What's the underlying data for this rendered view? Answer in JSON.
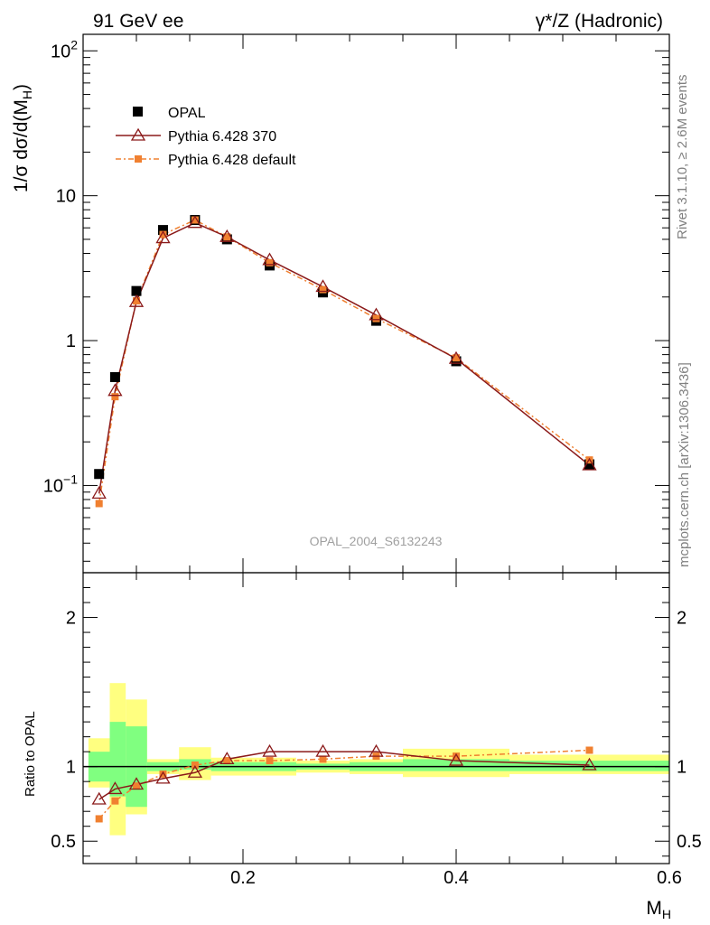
{
  "header": {
    "left_title": "91 GeV ee",
    "right_title_sym": "γ*/Z",
    "right_title_rest": "(Hadronic)"
  },
  "side_labels": {
    "rivet": "Rivet 3.1.10, ≥ 2.6M events",
    "mcplots": "mcplots.cern.ch [arXiv:1306.3436]"
  },
  "watermark": "OPAL_2004_S6132243",
  "chart_data": {
    "type": "line",
    "scale_y": "log",
    "ylabel_parts": [
      "1/σ dσ/d(M",
      "H",
      ")"
    ],
    "ylim": [
      0.025,
      130
    ],
    "y_ticks": [
      {
        "value": 100,
        "base": "10",
        "exp": "2"
      },
      {
        "value": 10,
        "label": "10"
      },
      {
        "value": 1,
        "label": "1"
      },
      {
        "value": 0.1,
        "base": "10",
        "exp": "−1"
      }
    ],
    "x": [
      0.065,
      0.08,
      0.1,
      0.125,
      0.155,
      0.185,
      0.225,
      0.275,
      0.325,
      0.4,
      0.525
    ],
    "series": [
      {
        "name": "OPAL",
        "values": [
          0.12,
          0.56,
          2.2,
          5.8,
          6.8,
          5.0,
          3.3,
          2.15,
          1.37,
          0.72,
          0.14
        ],
        "color": "#000000",
        "marker": "square"
      },
      {
        "name": "Pythia 6.428 370",
        "values": [
          0.088,
          0.45,
          1.85,
          5.1,
          6.5,
          5.2,
          3.6,
          2.35,
          1.5,
          0.75,
          0.138
        ],
        "color": "#8b1a1a",
        "marker": "triangle"
      },
      {
        "name": "Pythia 6.428 default",
        "values": [
          0.075,
          0.41,
          1.88,
          5.4,
          6.8,
          5.2,
          3.45,
          2.25,
          1.42,
          0.76,
          0.15
        ],
        "color": "#f08030",
        "marker": "dash-square"
      }
    ],
    "ratio": {
      "ylabel": "Ratio to OPAL",
      "ylim": [
        0.35,
        2.3
      ],
      "y_ticks": [
        {
          "value": 2,
          "label": "2"
        },
        {
          "value": 1,
          "label": "1"
        },
        {
          "value": 0.5,
          "label": "0.5"
        }
      ],
      "bin_edges": [
        0.055,
        0.075,
        0.09,
        0.11,
        0.14,
        0.17,
        0.2,
        0.25,
        0.3,
        0.35,
        0.45,
        0.6
      ],
      "band_green": [
        [
          0.9,
          1.1
        ],
        [
          0.8,
          1.3
        ],
        [
          0.73,
          1.27
        ],
        [
          0.97,
          1.03
        ],
        [
          0.98,
          1.05
        ],
        [
          0.97,
          1.03
        ],
        [
          0.97,
          1.03
        ],
        [
          0.98,
          1.02
        ],
        [
          0.97,
          1.03
        ],
        [
          0.97,
          1.05
        ],
        [
          0.97,
          1.04
        ]
      ],
      "band_yellow": [
        [
          0.86,
          1.19
        ],
        [
          0.54,
          1.56
        ],
        [
          0.68,
          1.45
        ],
        [
          0.95,
          1.05
        ],
        [
          0.91,
          1.13
        ],
        [
          0.94,
          1.06
        ],
        [
          0.94,
          1.06
        ],
        [
          0.96,
          1.04
        ],
        [
          0.95,
          1.05
        ],
        [
          0.93,
          1.12
        ],
        [
          0.95,
          1.08
        ]
      ],
      "series": [
        {
          "name": "Pythia 6.428 370",
          "values": [
            0.78,
            0.85,
            0.88,
            0.92,
            0.96,
            1.05,
            1.1,
            1.1,
            1.1,
            1.04,
            1.01
          ]
        },
        {
          "name": "Pythia 6.428 default",
          "values": [
            0.65,
            0.77,
            0.87,
            0.95,
            1.01,
            1.04,
            1.04,
            1.05,
            1.07,
            1.07,
            1.11
          ]
        }
      ]
    },
    "xlim": [
      0.05,
      0.6
    ],
    "x_ticks": [
      {
        "value": 0.2,
        "label": "0.2"
      },
      {
        "value": 0.4,
        "label": "0.4"
      },
      {
        "value": 0.6,
        "label": "0.6"
      }
    ],
    "xlabel_parts": [
      "M",
      "H"
    ]
  }
}
